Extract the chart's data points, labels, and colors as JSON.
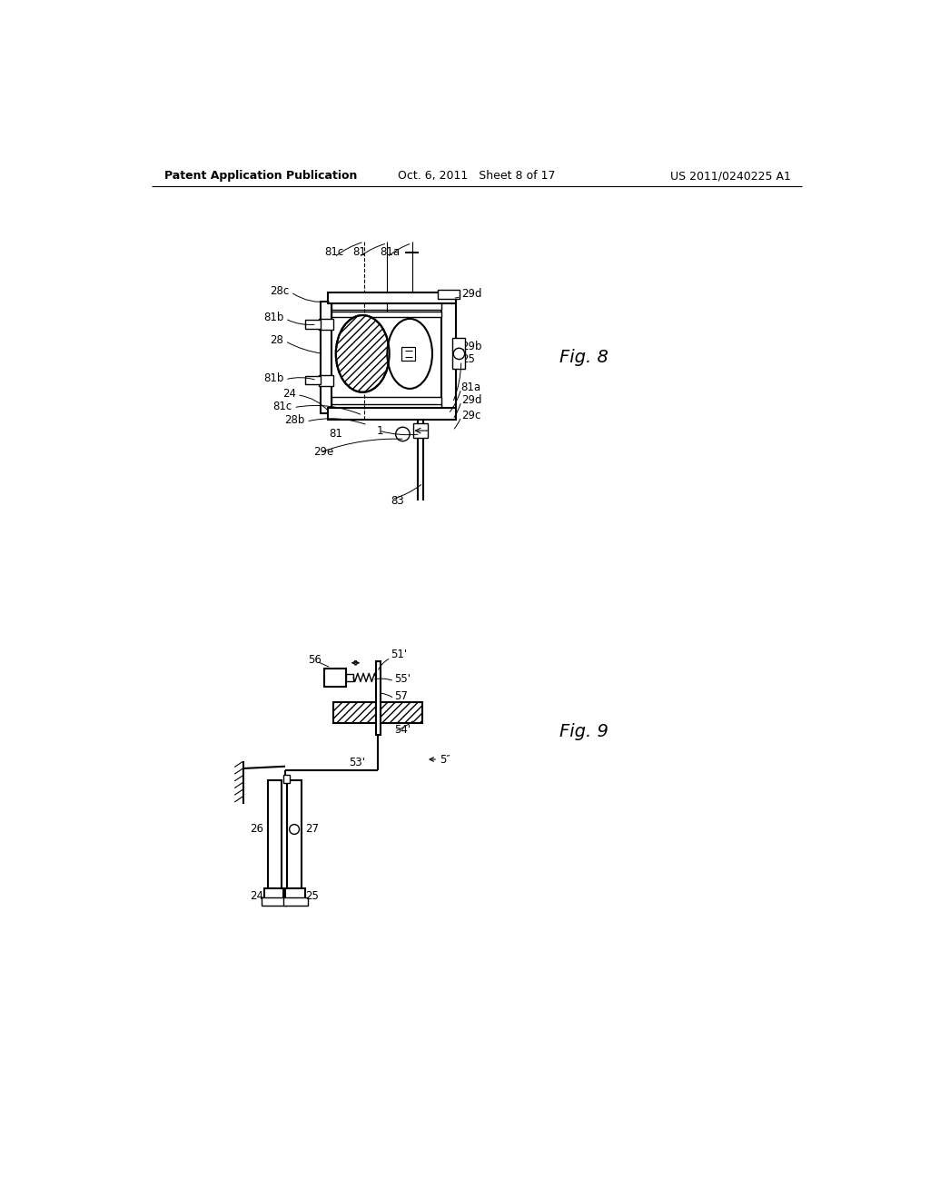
{
  "background_color": "#ffffff",
  "header_left": "Patent Application Publication",
  "header_center": "Oct. 6, 2011   Sheet 8 of 17",
  "header_right": "US 2011/0240225 A1",
  "fig8_label": "Fig. 8",
  "fig9_label": "Fig. 9"
}
